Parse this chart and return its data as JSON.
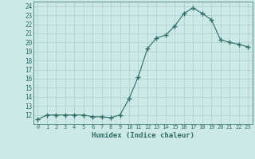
{
  "x": [
    0,
    1,
    2,
    3,
    4,
    5,
    6,
    7,
    8,
    9,
    10,
    11,
    12,
    13,
    14,
    15,
    16,
    17,
    18,
    19,
    20,
    21,
    22,
    23
  ],
  "y": [
    11.5,
    12.0,
    12.0,
    12.0,
    12.0,
    12.0,
    11.8,
    11.8,
    11.7,
    12.0,
    13.8,
    16.2,
    19.3,
    20.5,
    20.8,
    21.8,
    23.2,
    23.8,
    23.2,
    22.5,
    20.3,
    20.0,
    19.8,
    19.5
  ],
  "xlabel": "Humidex (Indice chaleur)",
  "xlim": [
    -0.5,
    23.5
  ],
  "ylim": [
    11,
    24.5
  ],
  "yticks": [
    12,
    13,
    14,
    15,
    16,
    17,
    18,
    19,
    20,
    21,
    22,
    23,
    24
  ],
  "bg_color": "#cce8e8",
  "line_color": "#2e6e65",
  "grid_color": "#aacece",
  "marker": "+"
}
